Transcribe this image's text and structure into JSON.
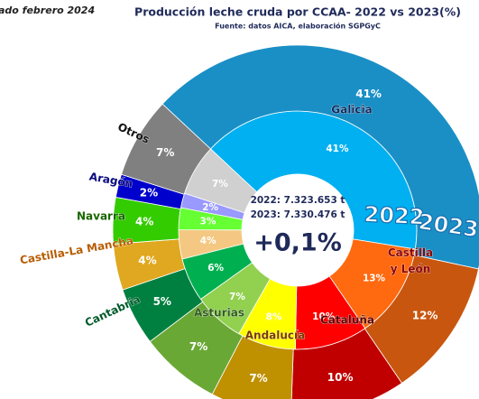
{
  "chart_data": {
    "type": "donut",
    "title": "Producción leche cruda por CCAA- 2022 vs 2023(%)",
    "subtitle": "Fuente: datos AICA, elaboración SGPGyC",
    "note": "ado febrero 2024",
    "categories": [
      "Galicia",
      "Castilla\ny León",
      "Cataluña",
      "Andalucía",
      "Asturias",
      "Cantabria",
      "Castilla-La Mancha",
      "Navarra",
      "Aragón",
      "Otros"
    ],
    "label_colors": [
      "#0d2a5c",
      "#8b0000",
      "#5a0000",
      "#7a3a00",
      "#2f5a1a",
      "#005a2a",
      "#b85c00",
      "#1a6600",
      "#0a0a80",
      "#111111"
    ],
    "series": [
      {
        "name": "2022",
        "ring": "inner",
        "values": [
          41,
          13,
          10,
          8,
          7,
          6,
          4,
          3,
          2,
          7
        ],
        "value_labels": [
          "41%",
          "13%",
          "10%",
          "8%",
          "7%",
          "6%",
          "4%",
          "3%",
          "2%",
          "7%"
        ],
        "colors": [
          "#00b0f0",
          "#ff6a10",
          "#ff0000",
          "#ffff00",
          "#92d050",
          "#00b050",
          "#f4c882",
          "#66ff33",
          "#9999ff",
          "#d0d0d0"
        ]
      },
      {
        "name": "2023",
        "ring": "outer",
        "values": [
          41,
          12,
          10,
          7,
          7,
          5,
          4,
          4,
          2,
          7
        ],
        "value_labels": [
          "41%",
          "12%",
          "10%",
          "7%",
          "7%",
          "5%",
          "4%",
          "4%",
          "2%",
          "7%"
        ],
        "colors": [
          "#1a8fc6",
          "#c9560f",
          "#c00000",
          "#bf9000",
          "#6aa835",
          "#008040",
          "#e0a820",
          "#33cc00",
          "#0000cc",
          "#808080"
        ]
      }
    ],
    "center": {
      "line1": "2022: 7.323.653  t",
      "line2": "2023: 7.330.476 t",
      "change": "+0,1%"
    }
  }
}
